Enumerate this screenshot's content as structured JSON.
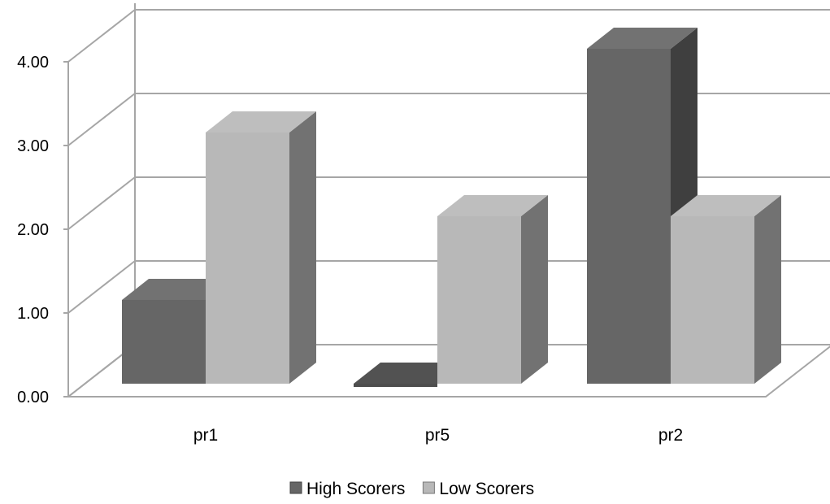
{
  "chart_data": {
    "type": "bar",
    "title": "",
    "xlabel": "",
    "ylabel": "",
    "categories": [
      "pr1",
      "pr5",
      "pr2"
    ],
    "series": [
      {
        "name": "High Scorers",
        "values": [
          1,
          0,
          4
        ],
        "color": "#666666"
      },
      {
        "name": "Low Scorers",
        "values": [
          3,
          2,
          2
        ],
        "color": "#b8b8b8"
      }
    ],
    "y_ticks": [
      "0.00",
      "1.00",
      "2.00",
      "3.00",
      "4.00"
    ],
    "ylim": [
      0,
      4
    ],
    "grid": true,
    "legend": "bottom",
    "style": "3d-clustered-column"
  }
}
